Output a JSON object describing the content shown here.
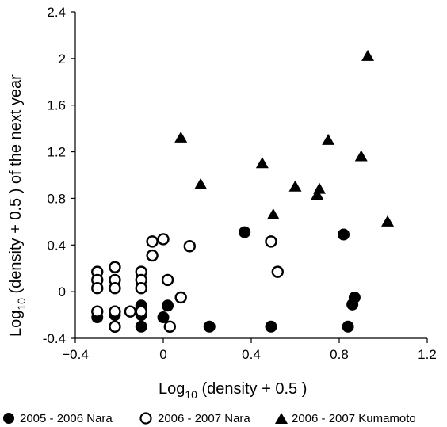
{
  "chart_data": {
    "type": "scatter",
    "title": "",
    "xlabel_main": "Log",
    "xlabel_sub": "10",
    "xlabel_rest": " (density + 0.5 )",
    "ylabel_main": "Log",
    "ylabel_sub": "10",
    "ylabel_rest": " (density + 0.5 ) of the next year",
    "xlim": [
      -0.4,
      1.2
    ],
    "ylim": [
      -0.4,
      2.4
    ],
    "x_ticks": [
      -0.4,
      0,
      0.4,
      0.8,
      1.2
    ],
    "x_tick_labels": [
      "−0.4",
      "0",
      "0.4",
      "0.8",
      "1.2"
    ],
    "y_ticks": [
      -0.4,
      0,
      0.4,
      0.8,
      1.2,
      1.6,
      2,
      2.4
    ],
    "y_tick_labels": [
      "-0.4",
      "0",
      "0.4",
      "0.8",
      "1.2",
      "1.6",
      "2",
      "2.4"
    ],
    "grid": false,
    "legend_position": "bottom",
    "series": [
      {
        "name": "2005 - 2006 Nara",
        "marker": "filled-circle",
        "color": "#000000",
        "points": [
          [
            -0.3,
            -0.22
          ],
          [
            -0.22,
            -0.2
          ],
          [
            -0.22,
            -0.3
          ],
          [
            -0.1,
            -0.12
          ],
          [
            -0.1,
            -0.3
          ],
          [
            -0.1,
            -0.2
          ],
          [
            0.0,
            -0.22
          ],
          [
            0.02,
            -0.12
          ],
          [
            0.21,
            -0.3
          ],
          [
            0.37,
            0.51
          ],
          [
            0.49,
            -0.3
          ],
          [
            0.82,
            0.49
          ],
          [
            0.84,
            -0.3
          ],
          [
            0.86,
            -0.11
          ],
          [
            0.87,
            -0.05
          ]
        ]
      },
      {
        "name": "2006 - 2007 Nara",
        "marker": "open-circle",
        "color": "#000000",
        "points": [
          [
            -0.3,
            0.17
          ],
          [
            -0.3,
            0.1
          ],
          [
            -0.3,
            0.03
          ],
          [
            -0.3,
            -0.17
          ],
          [
            -0.22,
            0.21
          ],
          [
            -0.22,
            0.1
          ],
          [
            -0.22,
            0.03
          ],
          [
            -0.22,
            -0.17
          ],
          [
            -0.22,
            -0.3
          ],
          [
            -0.15,
            -0.17
          ],
          [
            -0.1,
            0.17
          ],
          [
            -0.1,
            0.1
          ],
          [
            -0.1,
            0.03
          ],
          [
            -0.1,
            -0.17
          ],
          [
            -0.05,
            0.43
          ],
          [
            -0.05,
            0.31
          ],
          [
            0.0,
            0.45
          ],
          [
            0.02,
            0.1
          ],
          [
            0.03,
            -0.3
          ],
          [
            0.12,
            0.39
          ],
          [
            0.08,
            -0.05
          ],
          [
            0.49,
            0.43
          ],
          [
            0.52,
            0.17
          ]
        ]
      },
      {
        "name": "2006 - 2007 Kumamoto",
        "marker": "filled-triangle",
        "color": "#000000",
        "points": [
          [
            0.08,
            1.32
          ],
          [
            0.17,
            0.92
          ],
          [
            0.45,
            1.1
          ],
          [
            0.5,
            0.66
          ],
          [
            0.6,
            0.9
          ],
          [
            0.7,
            0.83
          ],
          [
            0.71,
            0.88
          ],
          [
            0.75,
            1.3
          ],
          [
            0.9,
            1.16
          ],
          [
            0.93,
            2.02
          ],
          [
            1.02,
            0.6
          ]
        ]
      }
    ]
  }
}
